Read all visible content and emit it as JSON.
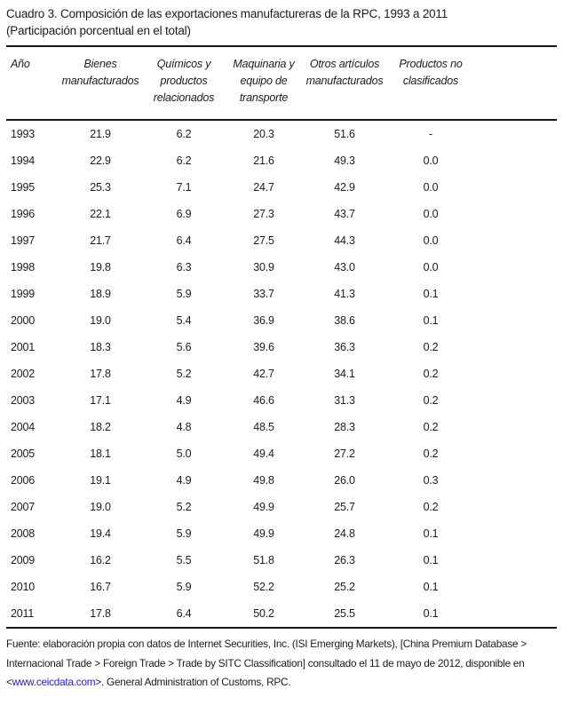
{
  "title": "Cuadro 3. Composición de las exportaciones manufactureras de la RPC, 1993 a 2011",
  "subtitle": "(Participación porcentual en el total)",
  "table": {
    "columns": [
      "Año",
      "Bienes manufacturados",
      "Químicos y productos relacionados",
      "Maquinaria y equipo de transporte",
      "Otros artículos manufacturados",
      "Productos no clasificados"
    ],
    "rows": [
      [
        "1993",
        "21.9",
        "6.2",
        "20.3",
        "51.6",
        "-"
      ],
      [
        "1994",
        "22.9",
        "6.2",
        "21.6",
        "49.3",
        "0.0"
      ],
      [
        "1995",
        "25.3",
        "7.1",
        "24.7",
        "42.9",
        "0.0"
      ],
      [
        "1996",
        "22.1",
        "6.9",
        "27.3",
        "43.7",
        "0.0"
      ],
      [
        "1997",
        "21.7",
        "6.4",
        "27.5",
        "44.3",
        "0.0"
      ],
      [
        "1998",
        "19.8",
        "6.3",
        "30.9",
        "43.0",
        "0.0"
      ],
      [
        "1999",
        "18.9",
        "5.9",
        "33.7",
        "41.3",
        "0.1"
      ],
      [
        "2000",
        "19.0",
        "5.4",
        "36.9",
        "38.6",
        "0.1"
      ],
      [
        "2001",
        "18.3",
        "5.6",
        "39.6",
        "36.3",
        "0.2"
      ],
      [
        "2002",
        "17.8",
        "5.2",
        "42.7",
        "34.1",
        "0.2"
      ],
      [
        "2003",
        "17.1",
        "4.9",
        "46.6",
        "31.3",
        "0.2"
      ],
      [
        "2004",
        "18.2",
        "4.8",
        "48.5",
        "28.3",
        "0.2"
      ],
      [
        "2005",
        "18.1",
        "5.0",
        "49.4",
        "27.2",
        "0.2"
      ],
      [
        "2006",
        "19.1",
        "4.9",
        "49.8",
        "26.0",
        "0.3"
      ],
      [
        "2007",
        "19.0",
        "5.2",
        "49.9",
        "25.7",
        "0.2"
      ],
      [
        "2008",
        "19.4",
        "5.9",
        "49.9",
        "24.8",
        "0.1"
      ],
      [
        "2009",
        "16.2",
        "5.5",
        "51.8",
        "26.3",
        "0.1"
      ],
      [
        "2010",
        "16.7",
        "5.9",
        "52.2",
        "25.2",
        "0.1"
      ],
      [
        "2011",
        "17.8",
        "6.4",
        "50.2",
        "25.5",
        "0.1"
      ]
    ]
  },
  "footer": {
    "text_before_link": "Fuente: elaboración propia con datos de Internet Securities, Inc. (ISI Emerging Markets), [China Premium Database > Internacional Trade > Foreign Trade > Trade by SITC Classification] consultado el 11 de mayo de 2012, disponible en <",
    "link_text": "www.ceicdata.com",
    "text_after_link": ">. General Administration of Customs, RPC.",
    "link_color": "#2323cf",
    "text_color": "#1c1c1c",
    "rule_color": "#161616"
  }
}
